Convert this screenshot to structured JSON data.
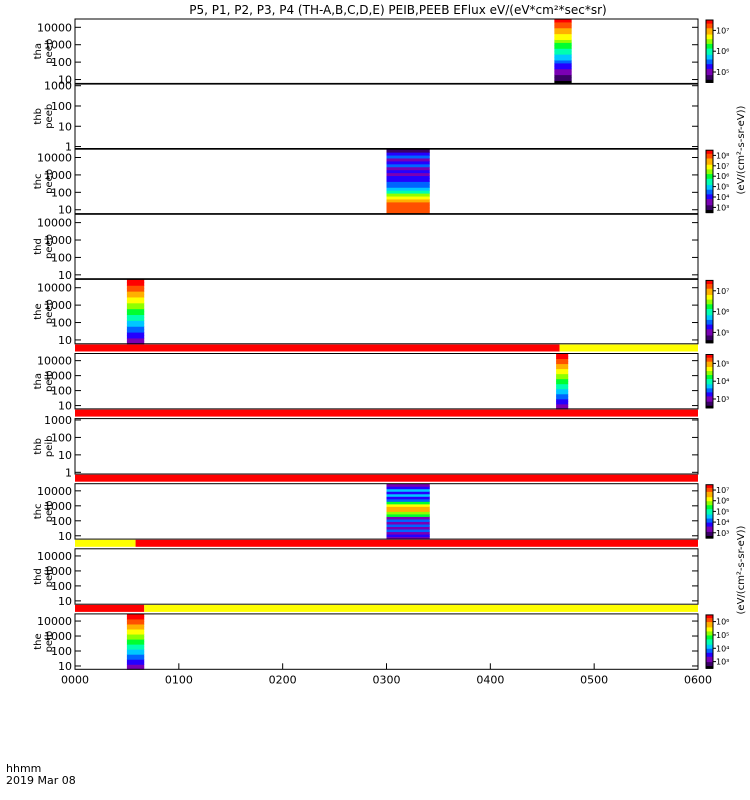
{
  "title": "P5, P1, P2, P3, P4 (TH-A,B,C,D,E) PEIB,PEEB EFlux eV/(eV*cm²*sec*sr)",
  "x_corner": {
    "line1": "hhmm",
    "line2": "2019 Mar 08"
  },
  "x_ticks": [
    "0000",
    "0100",
    "0200",
    "0300",
    "0400",
    "0500",
    "0600"
  ],
  "cb_title_e": "(eV/(cm²-s-sr-eV))",
  "cb_title_i": "(eV/(cm²-s-sr-eV))",
  "palette": [
    "#000000",
    "#3a0066",
    "#7a00b4",
    "#2400ff",
    "#0064ff",
    "#00c8ff",
    "#00ffb0",
    "#00ff30",
    "#90ff00",
    "#ffff00",
    "#ffb000",
    "#ff5000",
    "#ff0000"
  ],
  "bar_colors": {
    "red": "#ff0000",
    "yellow": "#ffff00"
  },
  "chart_data": {
    "type": "heatmap",
    "x_unit": "hhmm",
    "x_range": [
      "0000",
      "0600"
    ],
    "panels": [
      {
        "id": "tha_peeb",
        "ylabel": [
          "tha",
          "peeb"
        ],
        "yticks": [
          "10",
          "100",
          "1000",
          "10000"
        ],
        "yrange": [
          6,
          30000
        ],
        "log": true,
        "colorbar": {
          "ticks": [
            "10⁵",
            "10⁶",
            "10⁷"
          ],
          "range": [
            50000,
            50000000
          ]
        },
        "blocks": [
          {
            "start": "0437",
            "end": "0447",
            "profile": "full_spectrum"
          }
        ]
      },
      {
        "id": "thb_peeb",
        "ylabel": [
          "thb",
          "peeb"
        ],
        "yticks": [
          "1",
          "10",
          "100",
          "1000"
        ],
        "yrange": [
          0.8,
          1200
        ],
        "log": true,
        "colorbar": null,
        "blocks": []
      },
      {
        "id": "thc_peeb",
        "ylabel": [
          "thc",
          "peeb"
        ],
        "yticks": [
          "10",
          "100",
          "1000",
          "10000"
        ],
        "yrange": [
          6,
          30000
        ],
        "log": true,
        "colorbar": {
          "ticks": [
            "10³",
            "10⁴",
            "10⁵",
            "10⁶",
            "10⁷",
            "10⁸"
          ],
          "range": [
            500,
            100000000
          ]
        },
        "blocks": [
          {
            "start": "0300",
            "end": "0325",
            "profile": "low_energy_peak"
          }
        ]
      },
      {
        "id": "thd_peeb",
        "ylabel": [
          "thd",
          "peeb"
        ],
        "yticks": [
          "10",
          "100",
          "1000",
          "10000"
        ],
        "yrange": [
          6,
          30000
        ],
        "log": true,
        "colorbar": null,
        "blocks": []
      },
      {
        "id": "the_peeb",
        "ylabel": [
          "the",
          "peeb"
        ],
        "yticks": [
          "10",
          "100",
          "1000",
          "10000"
        ],
        "yrange": [
          6,
          30000
        ],
        "log": true,
        "colorbar": {
          "ticks": [
            "10⁵",
            "10⁶",
            "10⁷"
          ],
          "range": [
            50000,
            50000000
          ]
        },
        "blocks": [
          {
            "start": "0030",
            "end": "0040",
            "profile": "high_energy_peak"
          }
        ]
      },
      {
        "id": "tha_peib",
        "ylabel": [
          "tha",
          "peib"
        ],
        "yticks": [
          "10",
          "100",
          "1000",
          "10000"
        ],
        "yrange": [
          6,
          30000
        ],
        "log": true,
        "colorbar": {
          "ticks": [
            "10³",
            "10⁴",
            "10⁵"
          ],
          "range": [
            500,
            1000000
          ]
        },
        "blocks": [
          {
            "start": "0438",
            "end": "0445",
            "profile": "high_energy_peak"
          }
        ],
        "status_bar": [
          {
            "start": "0000",
            "end": "0440",
            "color": "red"
          },
          {
            "start": "0440",
            "end": "0600",
            "color": "yellow"
          }
        ]
      },
      {
        "id": "thb_peib",
        "ylabel": [
          "thb",
          "peib"
        ],
        "yticks": [
          "1",
          "10",
          "100",
          "1000"
        ],
        "yrange": [
          0.8,
          1200
        ],
        "log": true,
        "colorbar": null,
        "blocks": [],
        "status_bar": [
          {
            "start": "0000",
            "end": "0600",
            "color": "red"
          }
        ]
      },
      {
        "id": "thc_peib",
        "ylabel": [
          "thc",
          "peib"
        ],
        "yticks": [
          "10",
          "100",
          "1000",
          "10000"
        ],
        "yrange": [
          6,
          30000
        ],
        "log": true,
        "colorbar": {
          "ticks": [
            "10³",
            "10⁴",
            "10⁵",
            "10⁶",
            "10⁷"
          ],
          "range": [
            500,
            20000000
          ]
        },
        "blocks": [
          {
            "start": "0300",
            "end": "0325",
            "profile": "mid_energy_peak"
          }
        ],
        "status_bar": [
          {
            "start": "0000",
            "end": "0600",
            "color": "red"
          }
        ]
      },
      {
        "id": "thd_peib",
        "ylabel": [
          "thd",
          "peib"
        ],
        "yticks": [
          "10",
          "100",
          "1000",
          "10000"
        ],
        "yrange": [
          6,
          30000
        ],
        "log": true,
        "colorbar": null,
        "blocks": [],
        "status_bar": [
          {
            "start": "0000",
            "end": "0035",
            "color": "yellow"
          },
          {
            "start": "0035",
            "end": "0600",
            "color": "red"
          }
        ]
      },
      {
        "id": "the_peib",
        "ylabel": [
          "the",
          "peib"
        ],
        "yticks": [
          "10",
          "100",
          "1000",
          "10000"
        ],
        "yrange": [
          6,
          30000
        ],
        "log": true,
        "colorbar": {
          "ticks": [
            "10³",
            "10⁴",
            "10⁵",
            "10⁶"
          ],
          "range": [
            500,
            2000000
          ]
        },
        "blocks": [
          {
            "start": "0030",
            "end": "0040",
            "profile": "high_energy_peak"
          }
        ],
        "status_bar": [
          {
            "start": "0000",
            "end": "0040",
            "color": "red"
          },
          {
            "start": "0040",
            "end": "0600",
            "color": "yellow"
          }
        ]
      }
    ]
  }
}
